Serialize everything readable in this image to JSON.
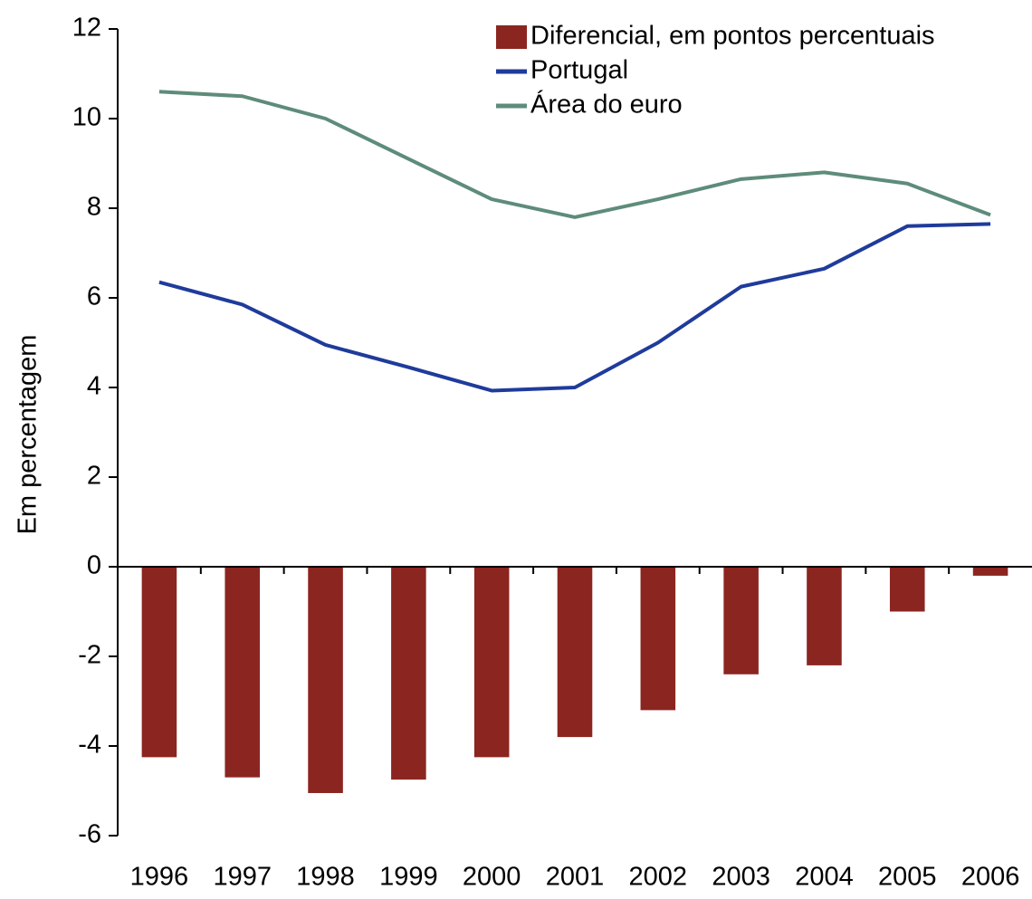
{
  "chart_data": {
    "type": "bar_line",
    "ylabel": "Em percentagem",
    "categories": [
      "1996",
      "1997",
      "1998",
      "1999",
      "2000",
      "2001",
      "2002",
      "2003",
      "2004",
      "2005",
      "2006"
    ],
    "series": [
      {
        "name": "Diferencial, em pontos percentuais",
        "type": "bar",
        "color": "#8b2520",
        "values": [
          -4.25,
          -4.7,
          -5.05,
          -4.75,
          -4.25,
          -3.8,
          -3.2,
          -2.4,
          -2.2,
          -1.0,
          -0.2
        ]
      },
      {
        "name": "Portugal",
        "type": "line",
        "color": "#1f3b9b",
        "values": [
          6.35,
          5.85,
          4.95,
          4.45,
          3.93,
          4.0,
          5.0,
          6.25,
          6.65,
          7.6,
          7.65
        ]
      },
      {
        "name": "Área do euro",
        "type": "line",
        "color": "#5e8c7a",
        "values": [
          10.6,
          10.5,
          10.0,
          9.1,
          8.2,
          7.8,
          8.2,
          8.65,
          8.8,
          8.55,
          7.85
        ]
      }
    ],
    "ylim": [
      -6,
      12
    ],
    "yticks": [
      -6,
      -4,
      -2,
      0,
      2,
      4,
      6,
      8,
      10,
      12
    ],
    "grid": false,
    "legend": "top-right"
  }
}
